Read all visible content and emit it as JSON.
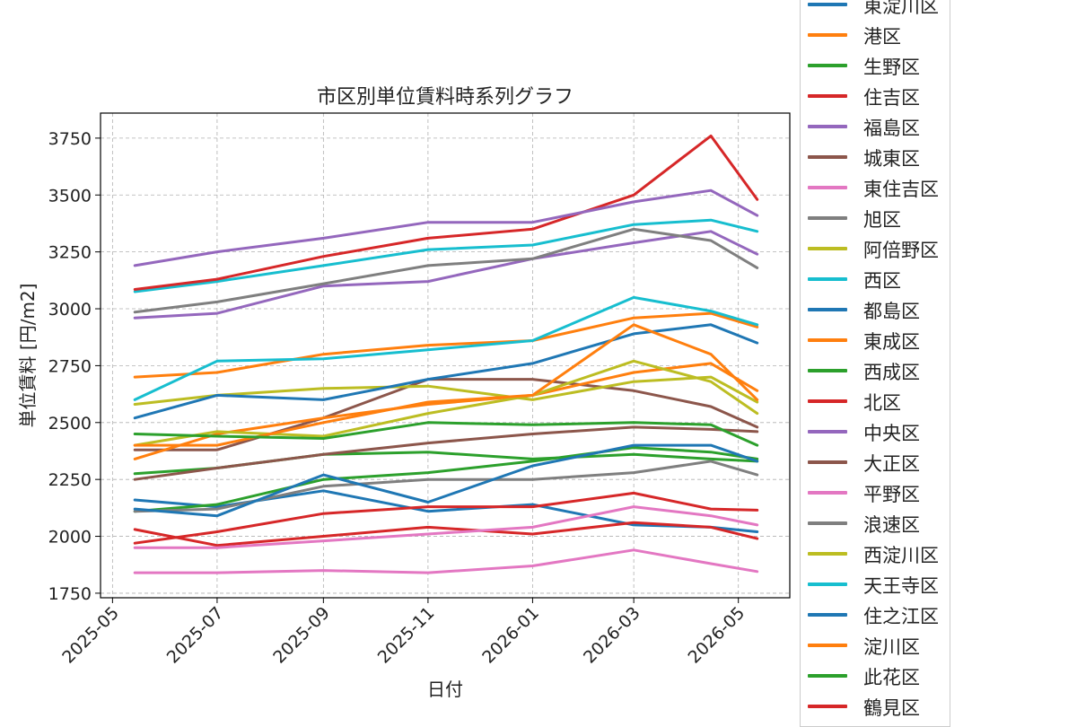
{
  "chart_data": {
    "type": "line",
    "title": "市区別単位賃料時系列グラフ",
    "xlabel": "日付",
    "ylabel": "単位賃料 [円/m2]",
    "x_ticks": [
      "2025-05",
      "2025-07",
      "2025-09",
      "2025-11",
      "2026-01",
      "2026-03",
      "2026-05"
    ],
    "x_tick_dates": [
      "2025-05-01",
      "2025-07-01",
      "2025-09-01",
      "2025-11-01",
      "2026-01-01",
      "2026-03-01",
      "2026-05-01"
    ],
    "x_range": [
      "2025-04-24",
      "2026-05-31"
    ],
    "y_ticks": [
      1750,
      2000,
      2250,
      2500,
      2750,
      3000,
      3250,
      3500,
      3750
    ],
    "ylim": [
      1730,
      3860
    ],
    "grid": true,
    "legend_position": "outside-right",
    "series": [
      {
        "name": "東淀川区",
        "color": "#1f77b4",
        "x": [
          "2025-05-14",
          "2025-07-01",
          "2025-09-01",
          "2025-11-01",
          "2026-01-01",
          "2026-03-01",
          "2026-04-15",
          "2026-05-12"
        ],
        "values": [
          2160,
          2130,
          2200,
          2110,
          2140,
          2050,
          2040,
          2020
        ]
      },
      {
        "name": "港区",
        "color": "#ff7f0e",
        "x": [
          "2025-05-14",
          "2025-07-01",
          "2025-09-01",
          "2025-11-01",
          "2026-01-01",
          "2026-03-01",
          "2026-04-15",
          "2026-05-12"
        ],
        "values": [
          2700,
          2720,
          2800,
          2840,
          2860,
          2960,
          2980,
          2920
        ]
      },
      {
        "name": "生野区",
        "color": "#2ca02c",
        "x": [
          "2025-05-14",
          "2025-07-01",
          "2025-09-01",
          "2025-11-01",
          "2026-01-01",
          "2026-03-01",
          "2026-04-15",
          "2026-05-12"
        ],
        "values": [
          2110,
          2140,
          2250,
          2280,
          2330,
          2390,
          2370,
          2340
        ]
      },
      {
        "name": "住吉区",
        "color": "#d62728",
        "x": [
          "2025-05-14",
          "2025-07-01",
          "2025-09-01",
          "2025-11-01",
          "2026-01-01",
          "2026-03-01",
          "2026-04-15",
          "2026-05-12"
        ],
        "values": [
          2030,
          1960,
          2000,
          2040,
          2010,
          2060,
          2040,
          1990
        ]
      },
      {
        "name": "福島区",
        "color": "#9467bd",
        "x": [
          "2025-05-14",
          "2025-07-01",
          "2025-09-01",
          "2025-11-01",
          "2026-01-01",
          "2026-03-01",
          "2026-04-15",
          "2026-05-12"
        ],
        "values": [
          2960,
          2980,
          3100,
          3120,
          3220,
          3290,
          3340,
          3240
        ]
      },
      {
        "name": "城東区",
        "color": "#8c564b",
        "x": [
          "2025-05-14",
          "2025-07-01",
          "2025-09-01",
          "2025-11-01",
          "2026-01-01",
          "2026-03-01",
          "2026-04-15",
          "2026-05-12"
        ],
        "values": [
          2380,
          2380,
          2520,
          2690,
          2690,
          2640,
          2570,
          2480
        ]
      },
      {
        "name": "東住吉区",
        "color": "#e377c2",
        "x": [
          "2025-05-14",
          "2025-07-01",
          "2025-09-01",
          "2025-11-01",
          "2026-01-01",
          "2026-03-01",
          "2026-04-15",
          "2026-05-12"
        ],
        "values": [
          1840,
          1840,
          1850,
          1840,
          1870,
          1940,
          1880,
          1845
        ]
      },
      {
        "name": "旭区",
        "color": "#7f7f7f",
        "x": [
          "2025-05-14",
          "2025-07-01",
          "2025-09-01",
          "2025-11-01",
          "2026-01-01",
          "2026-03-01",
          "2026-04-15",
          "2026-05-12"
        ],
        "values": [
          2985,
          3030,
          3110,
          3190,
          3220,
          3350,
          3300,
          3180
        ]
      },
      {
        "name": "阿倍野区",
        "color": "#bcbd22",
        "x": [
          "2025-05-14",
          "2025-07-01",
          "2025-09-01",
          "2025-11-01",
          "2026-01-01",
          "2026-03-01",
          "2026-04-15",
          "2026-05-12"
        ],
        "values": [
          2580,
          2620,
          2650,
          2660,
          2600,
          2680,
          2700,
          2590
        ]
      },
      {
        "name": "西区",
        "color": "#17becf",
        "x": [
          "2025-05-14",
          "2025-07-01",
          "2025-09-01",
          "2025-11-01",
          "2026-01-01",
          "2026-03-01",
          "2026-04-15",
          "2026-05-12"
        ],
        "values": [
          3075,
          3120,
          3190,
          3260,
          3280,
          3370,
          3390,
          3340
        ]
      },
      {
        "name": "都島区",
        "color": "#1f77b4",
        "x": [
          "2025-05-14",
          "2025-07-01",
          "2025-09-01",
          "2025-11-01",
          "2026-01-01",
          "2026-03-01",
          "2026-04-15",
          "2026-05-12"
        ],
        "values": [
          2520,
          2620,
          2600,
          2690,
          2760,
          2890,
          2930,
          2850
        ]
      },
      {
        "name": "東成区",
        "color": "#ff7f0e",
        "x": [
          "2025-05-14",
          "2025-07-01",
          "2025-09-01",
          "2025-11-01",
          "2026-01-01",
          "2026-03-01",
          "2026-04-15",
          "2026-05-12"
        ],
        "values": [
          2340,
          2450,
          2520,
          2580,
          2620,
          2720,
          2760,
          2640
        ]
      },
      {
        "name": "西成区",
        "color": "#2ca02c",
        "x": [
          "2025-05-14",
          "2025-07-01",
          "2025-09-01",
          "2025-11-01",
          "2026-01-01",
          "2026-03-01",
          "2026-04-15",
          "2026-05-12"
        ],
        "values": [
          2275,
          2300,
          2360,
          2370,
          2340,
          2360,
          2340,
          2330
        ]
      },
      {
        "name": "北区",
        "color": "#d62728",
        "x": [
          "2025-05-14",
          "2025-07-01",
          "2025-09-01",
          "2025-11-01",
          "2026-01-01",
          "2026-03-01",
          "2026-04-15",
          "2026-05-12"
        ],
        "values": [
          3085,
          3130,
          3230,
          3310,
          3350,
          3500,
          3760,
          3480
        ]
      },
      {
        "name": "中央区",
        "color": "#9467bd",
        "x": [
          "2025-05-14",
          "2025-07-01",
          "2025-09-01",
          "2025-11-01",
          "2026-01-01",
          "2026-03-01",
          "2026-04-15",
          "2026-05-12"
        ],
        "values": [
          3190,
          3250,
          3310,
          3380,
          3380,
          3470,
          3520,
          3410
        ]
      },
      {
        "name": "大正区",
        "color": "#8c564b",
        "x": [
          "2025-05-14",
          "2025-07-01",
          "2025-09-01",
          "2025-11-01",
          "2026-01-01",
          "2026-03-01",
          "2026-04-15",
          "2026-05-12"
        ],
        "values": [
          2250,
          2300,
          2360,
          2410,
          2450,
          2480,
          2470,
          2460
        ]
      },
      {
        "name": "平野区",
        "color": "#e377c2",
        "x": [
          "2025-05-14",
          "2025-07-01",
          "2025-09-01",
          "2025-11-01",
          "2026-01-01",
          "2026-03-01",
          "2026-04-15",
          "2026-05-12"
        ],
        "values": [
          1950,
          1950,
          1980,
          2010,
          2040,
          2130,
          2090,
          2050
        ]
      },
      {
        "name": "浪速区",
        "color": "#7f7f7f",
        "x": [
          "2025-05-14",
          "2025-07-01",
          "2025-09-01",
          "2025-11-01",
          "2026-01-01",
          "2026-03-01",
          "2026-04-15",
          "2026-05-12"
        ],
        "values": [
          2110,
          2120,
          2220,
          2250,
          2250,
          2280,
          2330,
          2270
        ]
      },
      {
        "name": "西淀川区",
        "color": "#bcbd22",
        "x": [
          "2025-05-14",
          "2025-07-01",
          "2025-09-01",
          "2025-11-01",
          "2026-01-01",
          "2026-03-01",
          "2026-04-15",
          "2026-05-12"
        ],
        "values": [
          2400,
          2460,
          2440,
          2540,
          2620,
          2770,
          2680,
          2540
        ]
      },
      {
        "name": "天王寺区",
        "color": "#17becf",
        "x": [
          "2025-05-14",
          "2025-07-01",
          "2025-09-01",
          "2025-11-01",
          "2026-01-01",
          "2026-03-01",
          "2026-04-15",
          "2026-05-12"
        ],
        "values": [
          2600,
          2770,
          2780,
          2820,
          2860,
          3050,
          2990,
          2930
        ]
      },
      {
        "name": "住之江区",
        "color": "#1f77b4",
        "x": [
          "2025-05-14",
          "2025-07-01",
          "2025-09-01",
          "2025-11-01",
          "2026-01-01",
          "2026-03-01",
          "2026-04-15",
          "2026-05-12"
        ],
        "values": [
          2120,
          2090,
          2270,
          2150,
          2310,
          2400,
          2400,
          2330
        ]
      },
      {
        "name": "淀川区",
        "color": "#ff7f0e",
        "x": [
          "2025-05-14",
          "2025-07-01",
          "2025-09-01",
          "2025-11-01",
          "2026-01-01",
          "2026-03-01",
          "2026-04-15",
          "2026-05-12"
        ],
        "values": [
          2400,
          2400,
          2500,
          2590,
          2620,
          2930,
          2800,
          2600
        ]
      },
      {
        "name": "此花区",
        "color": "#2ca02c",
        "x": [
          "2025-05-14",
          "2025-07-01",
          "2025-09-01",
          "2025-11-01",
          "2026-01-01",
          "2026-03-01",
          "2026-04-15",
          "2026-05-12"
        ],
        "values": [
          2450,
          2440,
          2430,
          2500,
          2490,
          2500,
          2490,
          2400
        ]
      },
      {
        "name": "鶴見区",
        "color": "#d62728",
        "x": [
          "2025-05-14",
          "2025-07-01",
          "2025-09-01",
          "2025-11-01",
          "2026-01-01",
          "2026-03-01",
          "2026-04-15",
          "2026-05-12"
        ],
        "values": [
          1970,
          2020,
          2100,
          2130,
          2130,
          2190,
          2120,
          2115
        ]
      }
    ]
  }
}
